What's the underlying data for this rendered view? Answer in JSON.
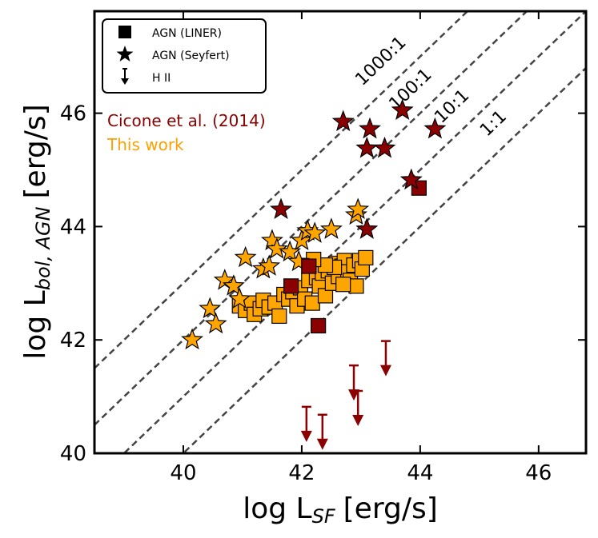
{
  "chart_data": {
    "type": "scatter",
    "xlabel": {
      "main": "log L",
      "sub": "SF",
      "unit": "[erg/s]"
    },
    "ylabel": {
      "main": "log L",
      "sub": "bol, AGN",
      "unit": "[erg/s]"
    },
    "xlim": [
      38.5,
      46.8
    ],
    "ylim": [
      40.0,
      47.8
    ],
    "xticks": [
      40,
      42,
      44,
      46
    ],
    "yticks": [
      40,
      42,
      44,
      46
    ],
    "xtick_labels": [
      "40",
      "42",
      "44",
      "46"
    ],
    "ytick_labels": [
      "40",
      "42",
      "44",
      "46"
    ],
    "grid": false,
    "legend": {
      "position": "top-left",
      "entries": [
        {
          "label": "AGN (LINER)",
          "marker": "square"
        },
        {
          "label": "AGN (Seyfert)",
          "marker": "star"
        },
        {
          "label": "H II",
          "marker": "arrow-down"
        }
      ]
    },
    "annotations": [
      {
        "text": "Cicone et al. (2014)",
        "color": "#8b0000"
      },
      {
        "text": "This work",
        "color": "#ff9f00"
      }
    ],
    "ratio_lines": [
      {
        "label": "1000:1",
        "offset": 3
      },
      {
        "label": "100:1",
        "offset": 2
      },
      {
        "label": "10:1",
        "offset": 1
      },
      {
        "label": "1:1",
        "offset": 0
      }
    ],
    "colors": {
      "cicone": "#8b0000",
      "this_work": "#ffa500",
      "line": "#444444"
    },
    "series": [
      {
        "name": "Cicone et al. (2014) Seyfert",
        "marker": "star",
        "color": "#8b0000",
        "points": [
          [
            42.7,
            45.85
          ],
          [
            43.15,
            45.72
          ],
          [
            43.7,
            46.05
          ],
          [
            44.25,
            45.72
          ],
          [
            43.1,
            45.38
          ],
          [
            43.4,
            45.38
          ],
          [
            43.85,
            44.82
          ],
          [
            41.65,
            44.3
          ],
          [
            43.1,
            43.95
          ]
        ]
      },
      {
        "name": "Cicone et al. (2014) LINER",
        "marker": "square",
        "color": "#8b0000",
        "points": [
          [
            43.98,
            44.68
          ],
          [
            42.12,
            43.3
          ],
          [
            41.82,
            42.95
          ],
          [
            42.28,
            42.25
          ]
        ]
      },
      {
        "name": "Cicone et al. (2014) H II",
        "marker": "arrow-down",
        "color": "#8b0000",
        "points": [
          [
            42.08,
            40.82
          ],
          [
            42.35,
            40.68
          ],
          [
            42.88,
            41.55
          ],
          [
            42.95,
            41.1
          ],
          [
            43.42,
            41.98
          ]
        ]
      },
      {
        "name": "This work Seyfert",
        "marker": "star",
        "color": "#ffa500",
        "points": [
          [
            40.15,
            42.0
          ],
          [
            40.45,
            42.55
          ],
          [
            40.55,
            42.28
          ],
          [
            40.7,
            43.05
          ],
          [
            40.85,
            42.95
          ],
          [
            40.95,
            42.72
          ],
          [
            41.05,
            43.45
          ],
          [
            41.35,
            43.25
          ],
          [
            41.45,
            43.3
          ],
          [
            41.5,
            43.75
          ],
          [
            41.58,
            43.6
          ],
          [
            41.8,
            43.55
          ],
          [
            41.95,
            43.38
          ],
          [
            42.0,
            43.75
          ],
          [
            42.1,
            43.92
          ],
          [
            42.22,
            43.88
          ],
          [
            42.5,
            43.95
          ],
          [
            42.92,
            44.2
          ],
          [
            42.95,
            44.3
          ]
        ]
      },
      {
        "name": "This work LINER",
        "marker": "square",
        "color": "#ffa500",
        "points": [
          [
            40.95,
            42.6
          ],
          [
            41.05,
            42.52
          ],
          [
            41.15,
            42.65
          ],
          [
            41.2,
            42.45
          ],
          [
            41.3,
            42.55
          ],
          [
            41.35,
            42.7
          ],
          [
            41.45,
            42.58
          ],
          [
            41.55,
            42.65
          ],
          [
            41.62,
            42.42
          ],
          [
            41.7,
            42.8
          ],
          [
            41.78,
            42.72
          ],
          [
            41.85,
            42.85
          ],
          [
            41.92,
            42.6
          ],
          [
            41.98,
            42.92
          ],
          [
            42.05,
            42.72
          ],
          [
            42.12,
            43.05
          ],
          [
            42.18,
            42.65
          ],
          [
            42.25,
            43.1
          ],
          [
            42.3,
            42.95
          ],
          [
            42.35,
            43.18
          ],
          [
            42.4,
            42.78
          ],
          [
            42.45,
            43.22
          ],
          [
            42.52,
            43.0
          ],
          [
            42.58,
            43.35
          ],
          [
            42.62,
            43.12
          ],
          [
            42.68,
            43.3
          ],
          [
            42.72,
            43.4
          ],
          [
            42.78,
            43.2
          ],
          [
            42.82,
            43.05
          ],
          [
            42.88,
            43.32
          ],
          [
            42.92,
            42.95
          ],
          [
            42.98,
            43.4
          ],
          [
            43.02,
            43.25
          ],
          [
            43.08,
            43.45
          ],
          [
            42.55,
            43.28
          ],
          [
            42.4,
            43.32
          ],
          [
            42.7,
            42.98
          ],
          [
            42.2,
            43.42
          ]
        ]
      }
    ]
  }
}
